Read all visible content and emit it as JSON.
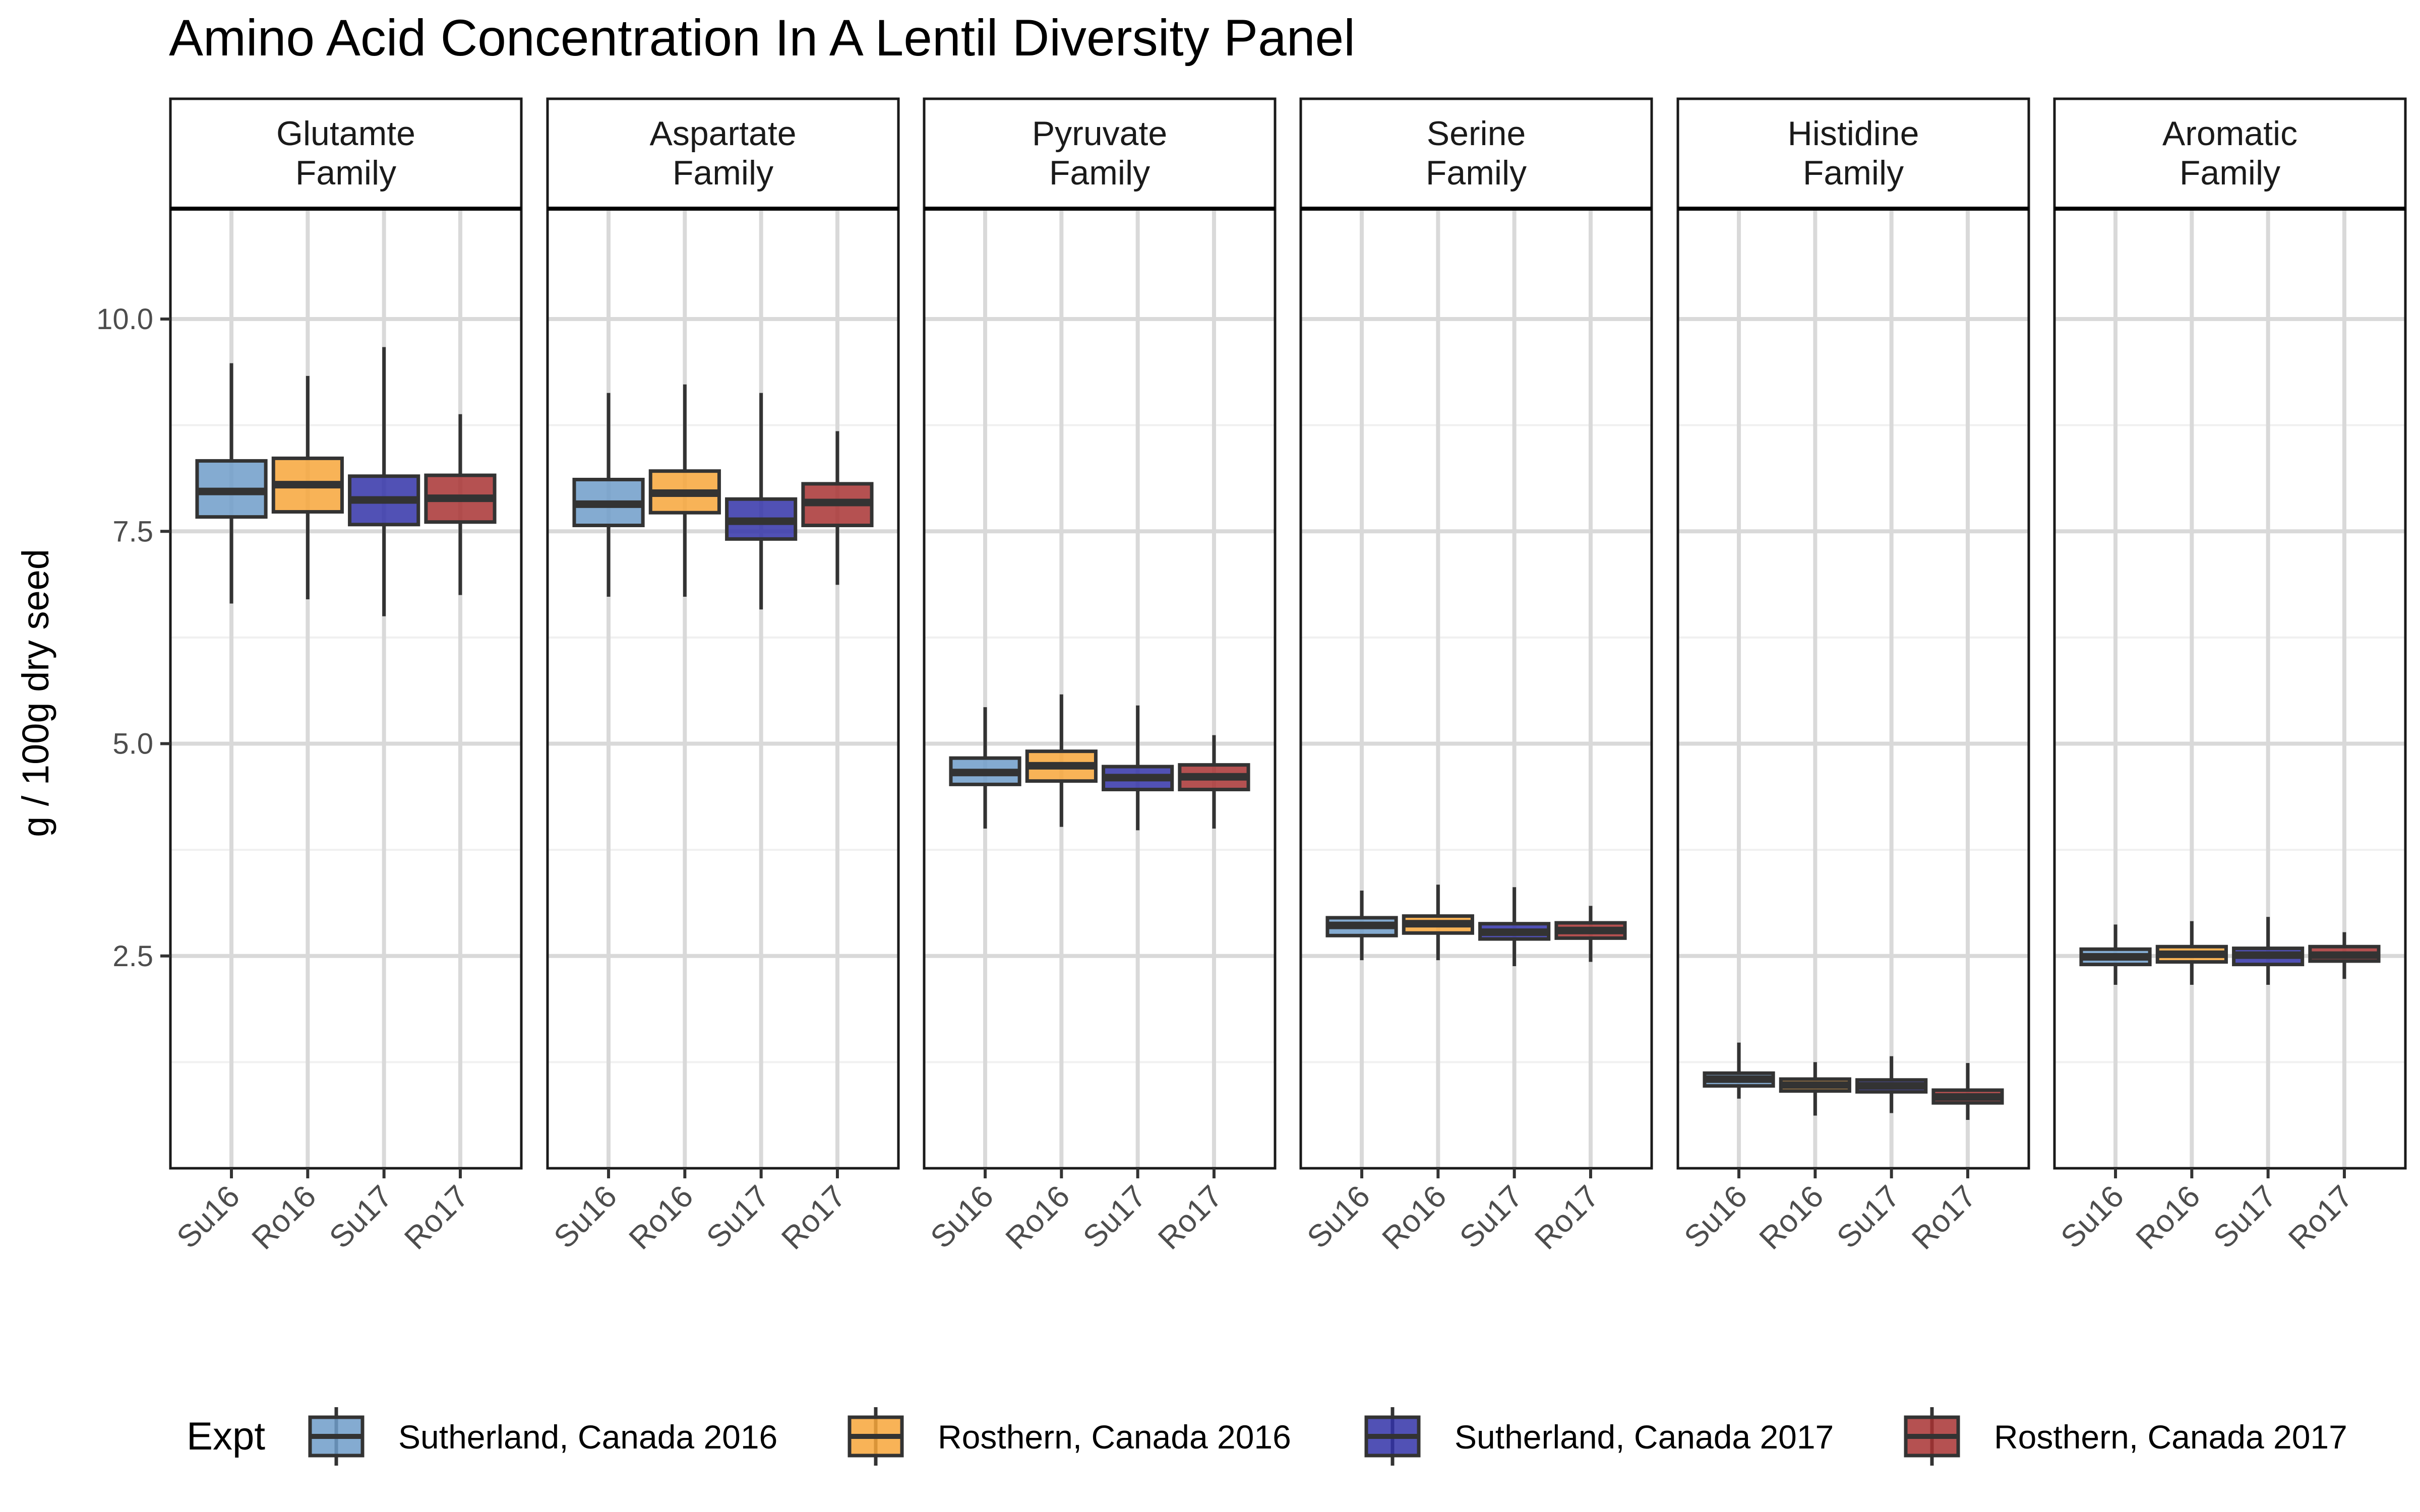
{
  "chart_data": {
    "type": "boxplot",
    "title": "Amino Acid Concentration In A Lentil Diversity Panel",
    "xlabel": "",
    "ylabel": "g / 100g dry seed",
    "ylim": [
      0,
      11.3
    ],
    "yticks": [
      "2.5",
      "5.0",
      "7.5",
      "10.0"
    ],
    "grid": true,
    "legend_position": "bottom",
    "legend_title": "Expt",
    "categories": [
      "Su16",
      "Ro16",
      "Su17",
      "Ro17"
    ],
    "series": [
      {
        "key": "Su16",
        "name": "Sutherland, Canada 2016",
        "color": "#6E9CC9"
      },
      {
        "key": "Ro16",
        "name": "Rosthern, Canada 2016",
        "color": "#F7A63A"
      },
      {
        "key": "Su17",
        "name": "Sutherland, Canada 2017",
        "color": "#3333A8"
      },
      {
        "key": "Ro17",
        "name": "Rosthern, Canada 2017",
        "color": "#A83232"
      }
    ],
    "facets": [
      {
        "label": [
          "Glutamte",
          "Family"
        ],
        "boxes": [
          {
            "min": 6.65,
            "q1": 7.67,
            "median": 7.97,
            "q3": 8.33,
            "max": 9.48
          },
          {
            "min": 6.7,
            "q1": 7.73,
            "median": 8.05,
            "q3": 8.36,
            "max": 9.33
          },
          {
            "min": 6.5,
            "q1": 7.58,
            "median": 7.87,
            "q3": 8.15,
            "max": 9.67
          },
          {
            "min": 6.75,
            "q1": 7.61,
            "median": 7.89,
            "q3": 8.16,
            "max": 8.88
          }
        ]
      },
      {
        "label": [
          "Aspartate",
          "Family"
        ],
        "boxes": [
          {
            "min": 6.73,
            "q1": 7.57,
            "median": 7.82,
            "q3": 8.11,
            "max": 9.13
          },
          {
            "min": 6.73,
            "q1": 7.72,
            "median": 7.95,
            "q3": 8.21,
            "max": 9.23
          },
          {
            "min": 6.58,
            "q1": 7.41,
            "median": 7.62,
            "q3": 7.88,
            "max": 9.13
          },
          {
            "min": 6.87,
            "q1": 7.57,
            "median": 7.84,
            "q3": 8.06,
            "max": 8.68
          }
        ]
      },
      {
        "label": [
          "Pyruvate",
          "Family"
        ],
        "boxes": [
          {
            "min": 4.0,
            "q1": 4.52,
            "median": 4.66,
            "q3": 4.83,
            "max": 5.43
          },
          {
            "min": 4.02,
            "q1": 4.56,
            "median": 4.74,
            "q3": 4.91,
            "max": 5.58
          },
          {
            "min": 3.98,
            "q1": 4.46,
            "median": 4.6,
            "q3": 4.73,
            "max": 5.45
          },
          {
            "min": 4.0,
            "q1": 4.46,
            "median": 4.61,
            "q3": 4.75,
            "max": 5.1
          }
        ]
      },
      {
        "label": [
          "Serine",
          "Family"
        ],
        "boxes": [
          {
            "min": 2.45,
            "q1": 2.74,
            "median": 2.86,
            "q3": 2.95,
            "max": 3.27
          },
          {
            "min": 2.45,
            "q1": 2.77,
            "median": 2.88,
            "q3": 2.97,
            "max": 3.34
          },
          {
            "min": 2.38,
            "q1": 2.7,
            "median": 2.78,
            "q3": 2.88,
            "max": 3.31
          },
          {
            "min": 2.43,
            "q1": 2.71,
            "median": 2.8,
            "q3": 2.89,
            "max": 3.09
          }
        ]
      },
      {
        "label": [
          "Histidine",
          "Family"
        ],
        "boxes": [
          {
            "min": 0.82,
            "q1": 0.97,
            "median": 1.05,
            "q3": 1.12,
            "max": 1.48
          },
          {
            "min": 0.62,
            "q1": 0.91,
            "median": 0.98,
            "q3": 1.05,
            "max": 1.25
          },
          {
            "min": 0.65,
            "q1": 0.9,
            "median": 0.97,
            "q3": 1.04,
            "max": 1.32
          },
          {
            "min": 0.57,
            "q1": 0.77,
            "median": 0.84,
            "q3": 0.92,
            "max": 1.24
          }
        ]
      },
      {
        "label": [
          "Aromatic",
          "Family"
        ],
        "boxes": [
          {
            "min": 2.16,
            "q1": 2.4,
            "median": 2.49,
            "q3": 2.58,
            "max": 2.87
          },
          {
            "min": 2.16,
            "q1": 2.43,
            "median": 2.52,
            "q3": 2.61,
            "max": 2.91
          },
          {
            "min": 2.16,
            "q1": 2.4,
            "median": 2.51,
            "q3": 2.59,
            "max": 2.96
          },
          {
            "min": 2.23,
            "q1": 2.44,
            "median": 2.51,
            "q3": 2.61,
            "max": 2.78
          }
        ]
      }
    ]
  }
}
